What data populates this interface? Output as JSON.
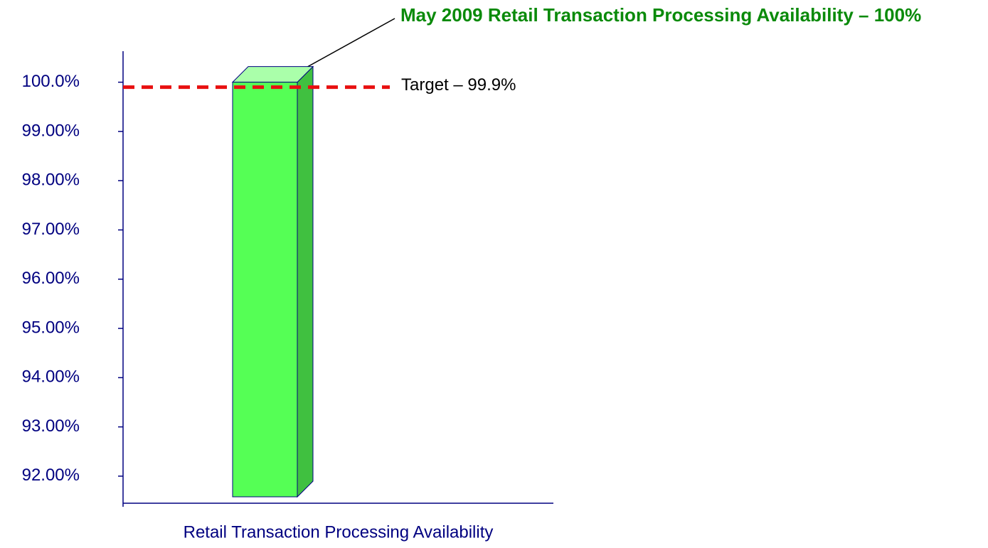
{
  "chart_data": {
    "type": "bar3d",
    "title": "May 2009 Retail Transaction Processing Availability – 100%",
    "categories": [
      "Retail Transaction Processing Availability"
    ],
    "values": [
      100
    ],
    "color": "#55ff55",
    "ylim": [
      91.45,
      100.63
    ],
    "yticks": [
      {
        "value": 92,
        "label": "92.00%"
      },
      {
        "value": 93,
        "label": "93.00%"
      },
      {
        "value": 94,
        "label": "94.00%"
      },
      {
        "value": 95,
        "label": "95.00%"
      },
      {
        "value": 96,
        "label": "96.00%"
      },
      {
        "value": 97,
        "label": "97.00%"
      },
      {
        "value": 98,
        "label": "98.00%"
      },
      {
        "value": 99,
        "label": "99.00%"
      },
      {
        "value": 100,
        "label": "100.0%"
      }
    ],
    "target": {
      "value": 99.9,
      "label": "Target – 99.9%",
      "color": "#e81010"
    }
  }
}
